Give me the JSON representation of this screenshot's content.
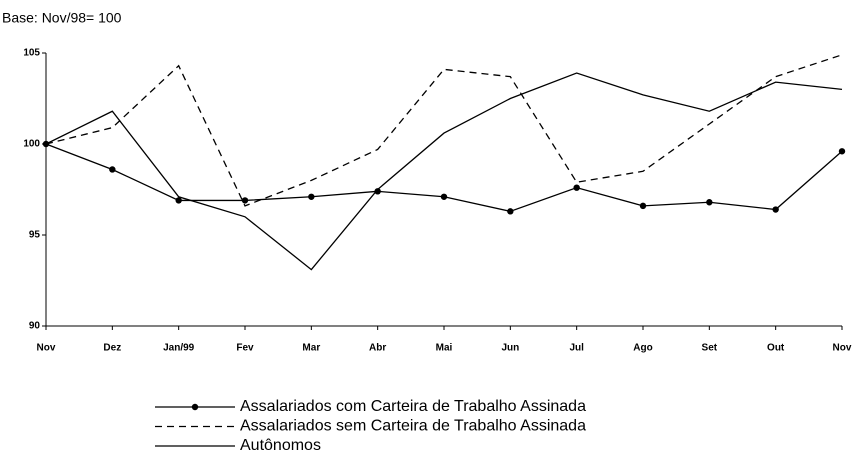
{
  "chart_data": {
    "type": "line",
    "subtitle": "Base: Nov/98= 100",
    "categories": [
      "Nov",
      "Dez",
      "Jan/99",
      "Fev",
      "Mar",
      "Abr",
      "Mai",
      "Jun",
      "Jul",
      "Ago",
      "Set",
      "Out",
      "Nov"
    ],
    "series": [
      {
        "name": "Assalariados com Carteira de Trabalho Assinada",
        "color": "#000000",
        "dash": "solid",
        "marker": true,
        "values": [
          100,
          98.6,
          96.9,
          96.9,
          97.1,
          97.4,
          97.1,
          96.3,
          97.6,
          96.6,
          96.8,
          96.4,
          99.6
        ]
      },
      {
        "name": "Assalariados sem Carteira de Trabalho Assinada",
        "color": "#000000",
        "dash": "dashed",
        "marker": false,
        "values": [
          100,
          100.9,
          104.3,
          96.6,
          98.0,
          99.7,
          104.1,
          103.7,
          97.9,
          98.5,
          101.1,
          103.7,
          104.9
        ]
      },
      {
        "name": "Autônomos",
        "color": "#000000",
        "dash": "solid",
        "marker": false,
        "values": [
          100,
          101.8,
          97.1,
          96.0,
          93.1,
          97.5,
          100.6,
          102.5,
          103.9,
          102.7,
          101.8,
          103.4,
          103.0
        ]
      }
    ],
    "ylim": [
      90,
      105
    ],
    "yticks": [
      90,
      95,
      100,
      105
    ],
    "grid": false,
    "legend": "bottom"
  }
}
